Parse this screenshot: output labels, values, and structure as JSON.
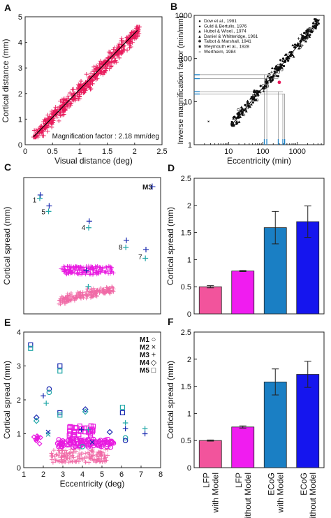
{
  "colors": {
    "pink": "#e8185a",
    "scatter_pink": "#f06aa6",
    "magenta_scatter": "#e81ae0",
    "lfp_with": "#f2549c",
    "lfp_without": "#f01cf0",
    "ecog_with": "#1a7fc4",
    "ecog_without": "#1515ee",
    "marker_blue": "#1a2ab0",
    "marker_teal": "#22a8a8",
    "axis": "#222222"
  },
  "bar_categories": [
    "LFP with Model",
    "LFP without Model",
    "ECoG with Model",
    "ECoG without Model"
  ],
  "chart_data": [
    {
      "panel": "A",
      "type": "scatter",
      "xlabel": "Visual distance (deg)",
      "ylabel": "Cortical distance (mm)",
      "annotation": "Magnification factor : 2.18 mm/deg",
      "xlim": [
        0,
        2.5
      ],
      "ylim": [
        0,
        5
      ],
      "xticks": [
        "0",
        "0.5",
        "1",
        "1.5",
        "2",
        "2.5"
      ],
      "yticks": [
        "0",
        "1",
        "2",
        "3",
        "4",
        "5"
      ],
      "fit_line": {
        "x": [
          0.15,
          2.05
        ],
        "y": [
          0.3,
          4.47
        ]
      },
      "cloud": {
        "x_range": [
          0.15,
          2.1
        ],
        "y_range": [
          0.3,
          4.6
        ],
        "slope": 2.18
      }
    },
    {
      "panel": "B",
      "type": "scatter",
      "xlabel": "Eccentricity (min)",
      "ylabel": "Inverse magnification factor (min/mm)",
      "xscale": "log",
      "yscale": "log",
      "xlim": [
        1,
        6000
      ],
      "ylim": [
        1,
        1000
      ],
      "xticks": [
        "10",
        "100",
        "1000"
      ],
      "yticks": [
        "1",
        "10",
        "100",
        "1000"
      ],
      "legend": [
        "Dow et al., 1981",
        "Guld & Bertulis, 1976",
        "Hubel & Wisel., 1974",
        "Daniel & Whitteridge, 1961",
        "Talbot & Marshall, 1941",
        "Weymouth et al., 1928",
        "Wertheim, 1984"
      ],
      "legend_position": "top-left",
      "red_marker": {
        "x": 300,
        "y": 28
      },
      "blue_h_levels": [
        42,
        34,
        17,
        15
      ],
      "blue_v_levels": [
        110,
        130,
        280,
        380,
        430
      ],
      "fit": {
        "x": [
          12,
          4500
        ],
        "y": [
          2.8,
          800
        ]
      }
    },
    {
      "panel": "C",
      "type": "scatter",
      "xlabel": "",
      "ylabel": "Cortical spread (mm)",
      "xlim": [
        1,
        8
      ],
      "ylim": [
        0,
        2.5
      ],
      "series_label": "M3",
      "labeled_points": [
        {
          "label": "1",
          "x": 1.85,
          "y": 2.18,
          "y2": 2.12
        },
        {
          "label": "5",
          "x": 2.3,
          "y": 1.98,
          "y2": 1.88
        },
        {
          "label": "4",
          "x": 4.35,
          "y": 1.7,
          "y2": 1.58
        },
        {
          "label": "8",
          "x": 6.25,
          "y": 1.35,
          "y2": 1.22
        },
        {
          "label": "7",
          "x": 7.25,
          "y": 1.18,
          "y2": 1.02
        }
      ],
      "band_upper": {
        "x_range": [
          2.9,
          5.6
        ],
        "y_range": [
          0.72,
          0.88
        ]
      },
      "band_lower": {
        "x_range": [
          2.8,
          5.6
        ],
        "y_range": [
          0.18,
          0.58
        ]
      }
    },
    {
      "panel": "D",
      "type": "bar",
      "ylabel": "Cortical spread (mm)",
      "ylim": [
        0,
        2.5
      ],
      "yticks": [
        "0",
        "0.5",
        "1",
        "1.5",
        "2",
        "2.5"
      ],
      "values": [
        0.5,
        0.79,
        1.59,
        1.7
      ],
      "errors": [
        0.02,
        0.01,
        0.3,
        0.29
      ]
    },
    {
      "panel": "E",
      "type": "scatter",
      "xlabel": "Eccentricity (deg)",
      "ylabel": "Cortical spread (mm)",
      "xlim": [
        1,
        8
      ],
      "ylim": [
        0,
        4
      ],
      "xticks": [
        "1",
        "2",
        "3",
        "4",
        "5",
        "6",
        "7",
        "8"
      ],
      "yticks": [
        "0",
        "1",
        "2",
        "3",
        "4"
      ],
      "legend": [
        "M1",
        "M2",
        "M3",
        "M4",
        "M5"
      ],
      "legend_symbols": [
        "○",
        "×",
        "+",
        "◇",
        "□"
      ],
      "legend_position": "top-right",
      "points": [
        {
          "m": "M5",
          "x": 1.35,
          "y": 3.62
        },
        {
          "m": "M5",
          "x": 1.35,
          "y": 3.52
        },
        {
          "m": "M5",
          "x": 2.85,
          "y": 3.0
        },
        {
          "m": "M5",
          "x": 2.85,
          "y": 2.85
        },
        {
          "m": "M1",
          "x": 2.3,
          "y": 2.32
        },
        {
          "m": "M1",
          "x": 2.3,
          "y": 2.22
        },
        {
          "m": "M3",
          "x": 2.0,
          "y": 2.12
        },
        {
          "m": "M3",
          "x": 2.15,
          "y": 1.9
        },
        {
          "m": "M4",
          "x": 1.65,
          "y": 1.48
        },
        {
          "m": "M4",
          "x": 1.65,
          "y": 1.38
        },
        {
          "m": "M2",
          "x": 2.25,
          "y": 1.05
        },
        {
          "m": "M2",
          "x": 2.25,
          "y": 0.98
        },
        {
          "m": "M5",
          "x": 2.85,
          "y": 1.62
        },
        {
          "m": "M5",
          "x": 2.85,
          "y": 1.55
        },
        {
          "m": "M4",
          "x": 4.15,
          "y": 1.72
        },
        {
          "m": "M4",
          "x": 4.15,
          "y": 1.65
        },
        {
          "m": "M3",
          "x": 3.95,
          "y": 1.12
        },
        {
          "m": "M3",
          "x": 4.3,
          "y": 1.12
        },
        {
          "m": "M4",
          "x": 5.4,
          "y": 1.05
        },
        {
          "m": "M5",
          "x": 6.05,
          "y": 1.78
        },
        {
          "m": "M5",
          "x": 6.05,
          "y": 1.62
        },
        {
          "m": "M3",
          "x": 6.2,
          "y": 1.32
        },
        {
          "m": "M3",
          "x": 6.2,
          "y": 1.15
        },
        {
          "m": "M1",
          "x": 6.2,
          "y": 0.88
        },
        {
          "m": "M1",
          "x": 6.2,
          "y": 0.8
        },
        {
          "m": "M3",
          "x": 7.2,
          "y": 1.15
        },
        {
          "m": "M3",
          "x": 7.2,
          "y": 1.0
        },
        {
          "m": "M1",
          "x": 4.0,
          "y": 0.62
        },
        {
          "m": "M2",
          "x": 4.5,
          "y": 0.75
        }
      ],
      "cluster_magenta": {
        "x_range": [
          2.7,
          5.6
        ],
        "y_range": [
          0.6,
          0.85
        ]
      },
      "cluster_squares": {
        "x_range": [
          3.3,
          4.6
        ],
        "y_range": [
          0.95,
          1.25
        ]
      },
      "cluster_pink": {
        "x_range": [
          2.4,
          5.3
        ],
        "y_range": [
          0.15,
          0.55
        ]
      },
      "cluster_left": {
        "x_range": [
          1.5,
          1.9
        ],
        "y_range": [
          0.7,
          0.95
        ]
      }
    },
    {
      "panel": "F",
      "type": "bar",
      "ylabel": "Cortical spread (mm)",
      "ylim": [
        0,
        2.5
      ],
      "yticks": [
        "0",
        "0.5",
        "1",
        "1.5",
        "2",
        "2.5"
      ],
      "values": [
        0.5,
        0.75,
        1.58,
        1.72
      ],
      "errors": [
        0.01,
        0.02,
        0.24,
        0.24
      ]
    }
  ]
}
